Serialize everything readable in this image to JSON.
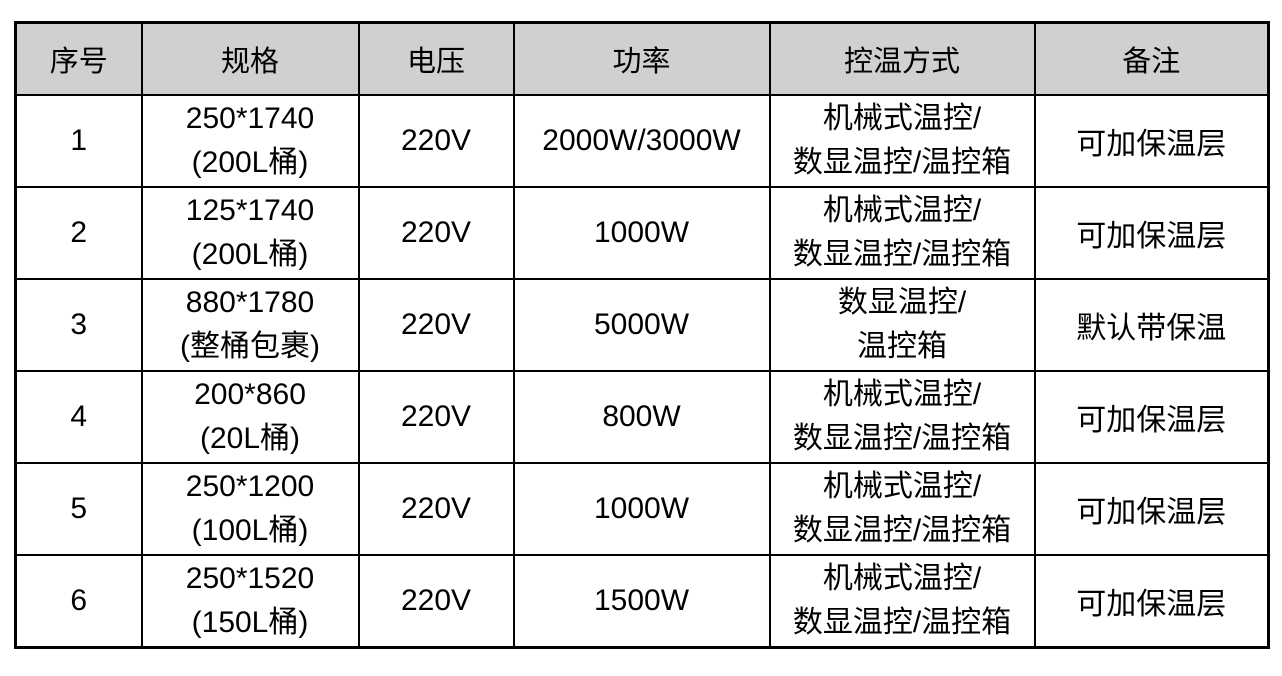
{
  "colors": {
    "header_bg": "#d0d0d0",
    "border": "#000000",
    "text": "#000000",
    "page_bg": "#ffffff"
  },
  "table": {
    "columns": [
      {
        "id": "index",
        "label": "序号"
      },
      {
        "id": "spec",
        "label": "规格"
      },
      {
        "id": "voltage",
        "label": "电压"
      },
      {
        "id": "power",
        "label": "功率"
      },
      {
        "id": "control",
        "label": "控温方式"
      },
      {
        "id": "remark",
        "label": "备注"
      }
    ],
    "rows": [
      {
        "index": "1",
        "spec_line1": "250*1740",
        "spec_line2": "(200L桶)",
        "voltage": "220V",
        "power": "2000W/3000W",
        "control_line1": "机械式温控/",
        "control_line2": "数显温控/温控箱",
        "remark": "可加保温层"
      },
      {
        "index": "2",
        "spec_line1": "125*1740",
        "spec_line2": "(200L桶)",
        "voltage": "220V",
        "power": "1000W",
        "control_line1": "机械式温控/",
        "control_line2": "数显温控/温控箱",
        "remark": "可加保温层"
      },
      {
        "index": "3",
        "spec_line1": "880*1780",
        "spec_line2": "(整桶包裹)",
        "voltage": "220V",
        "power": "5000W",
        "control_line1": "数显温控/",
        "control_line2": "温控箱",
        "remark": "默认带保温"
      },
      {
        "index": "4",
        "spec_line1": "200*860",
        "spec_line2": "(20L桶)",
        "voltage": "220V",
        "power": "800W",
        "control_line1": "机械式温控/",
        "control_line2": "数显温控/温控箱",
        "remark": "可加保温层"
      },
      {
        "index": "5",
        "spec_line1": "250*1200",
        "spec_line2": "(100L桶)",
        "voltage": "220V",
        "power": "1000W",
        "control_line1": "机械式温控/",
        "control_line2": "数显温控/温控箱",
        "remark": "可加保温层"
      },
      {
        "index": "6",
        "spec_line1": "250*1520",
        "spec_line2": "(150L桶)",
        "voltage": "220V",
        "power": "1500W",
        "control_line1": "机械式温控/",
        "control_line2": "数显温控/温控箱",
        "remark": "可加保温层"
      }
    ]
  }
}
